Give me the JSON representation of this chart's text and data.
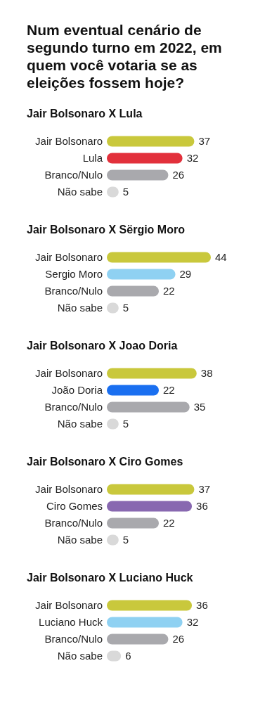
{
  "chart_data": [
    {
      "type": "bar",
      "orientation": "horizontal",
      "title": "Num eventual cenário de segundo turno em 2022, em quem você votaria se as eleições fossem hoje?",
      "subtitle": "Jair Bolsonaro X Lula",
      "categories": [
        "Jair Bolsonaro",
        "Lula",
        "Branco/Nulo",
        "Não sabe"
      ],
      "values": [
        37,
        32,
        26,
        5
      ],
      "colors": [
        "#c9c83c",
        "#e2303b",
        "#a9a9ad",
        "#d9d9d9"
      ],
      "data_labels": true
    },
    {
      "type": "bar",
      "orientation": "horizontal",
      "subtitle": "Jair Bolsonaro X Sërgio Moro",
      "categories": [
        "Jair Bolsonaro",
        "Sergio Moro",
        "Branco/Nulo",
        "Não sabe"
      ],
      "values": [
        44,
        29,
        22,
        5
      ],
      "colors": [
        "#c9c83c",
        "#8fd1f2",
        "#a9a9ad",
        "#d9d9d9"
      ],
      "data_labels": true
    },
    {
      "type": "bar",
      "orientation": "horizontal",
      "subtitle": "Jair Bolsonaro X Joao Doria",
      "categories": [
        "Jair Bolsonaro",
        "João Doria",
        "Branco/Nulo",
        "Não sabe"
      ],
      "values": [
        38,
        22,
        35,
        5
      ],
      "colors": [
        "#c9c83c",
        "#1a6ff0",
        "#a9a9ad",
        "#d9d9d9"
      ],
      "data_labels": true
    },
    {
      "type": "bar",
      "orientation": "horizontal",
      "subtitle": "Jair Bolsonaro X Ciro Gomes",
      "categories": [
        "Jair Bolsonaro",
        "Ciro Gomes",
        "Branco/Nulo",
        "Não sabe"
      ],
      "values": [
        37,
        36,
        22,
        5
      ],
      "colors": [
        "#c9c83c",
        "#8868b0",
        "#a9a9ad",
        "#d9d9d9"
      ],
      "data_labels": true
    },
    {
      "type": "bar",
      "orientation": "horizontal",
      "subtitle": "Jair Bolsonaro X Luciano Huck",
      "categories": [
        "Jair Bolsonaro",
        "Luciano Huck",
        "Branco/Nulo",
        "Não sabe"
      ],
      "values": [
        36,
        32,
        26,
        6
      ],
      "colors": [
        "#c9c83c",
        "#8fd1f2",
        "#a9a9ad",
        "#d9d9d9"
      ],
      "data_labels": true
    }
  ]
}
